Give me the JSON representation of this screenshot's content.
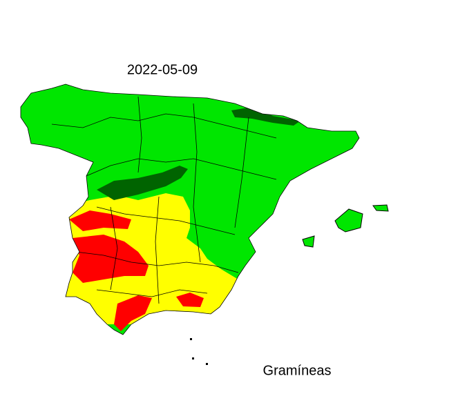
{
  "map": {
    "date": "2022-05-09",
    "label": "Gramíneas"
  }
}
